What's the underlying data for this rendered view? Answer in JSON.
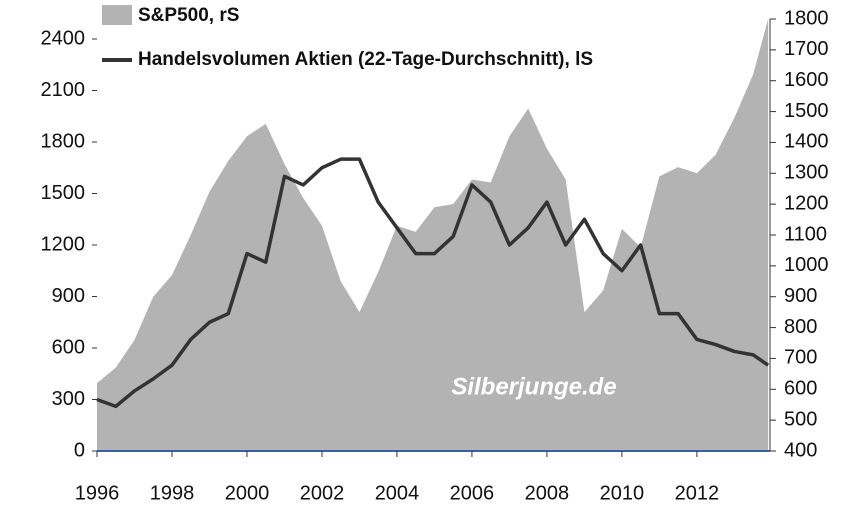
{
  "chart_data": {
    "type": "line",
    "legend": [
      "S&P500, rS",
      "Handelsvolumen Aktien (22-Tage-Durchschnitt), lS"
    ],
    "annotation": "Silberjunge.de",
    "x": [
      1996,
      1996.5,
      1997,
      1997.5,
      1998,
      1998.5,
      1999,
      1999.5,
      2000,
      2000.5,
      2001,
      2001.5,
      2002,
      2002.5,
      2003,
      2003.5,
      2004,
      2004.5,
      2005,
      2005.5,
      2006,
      2006.5,
      2007,
      2007.5,
      2008,
      2008.5,
      2009,
      2009.5,
      2010,
      2010.5,
      2011,
      2011.5,
      2012,
      2012.5,
      2013,
      2013.5,
      2013.9
    ],
    "series": [
      {
        "name": "S&P500, rS",
        "color": "#b3b3b3",
        "axis": "y2",
        "kind": "area",
        "values": [
          620,
          670,
          760,
          900,
          970,
          1100,
          1240,
          1340,
          1420,
          1460,
          1330,
          1220,
          1130,
          950,
          850,
          980,
          1130,
          1110,
          1190,
          1200,
          1280,
          1270,
          1420,
          1510,
          1380,
          1280,
          850,
          920,
          1120,
          1060,
          1290,
          1320,
          1300,
          1360,
          1480,
          1620,
          1800
        ]
      },
      {
        "name": "Handelsvolumen Aktien (22-Tage-Durchschnitt), lS",
        "color": "#333333",
        "kind": "line",
        "values": [
          300,
          260,
          350,
          420,
          500,
          650,
          750,
          800,
          1150,
          1100,
          1600,
          1550,
          1650,
          1700,
          1700,
          1450,
          1300,
          1150,
          1150,
          1250,
          1550,
          1450,
          1200,
          1300,
          1450,
          1200,
          1350,
          1150,
          1050,
          1200,
          800,
          800,
          650,
          620,
          580,
          560,
          500
        ]
      }
    ],
    "xlim": [
      1996,
      2013.95
    ],
    "xticks": [
      1996,
      1998,
      2000,
      2002,
      2004,
      2006,
      2008,
      2010,
      2012
    ],
    "ylim": [
      0,
      2400
    ],
    "yticks": [
      0,
      300,
      600,
      900,
      1200,
      1500,
      1800,
      2100,
      2400
    ],
    "y2lim": [
      400,
      1800
    ],
    "y2ticks": [
      400,
      500,
      600,
      700,
      800,
      900,
      1000,
      1100,
      1200,
      1300,
      1400,
      1500,
      1600,
      1700,
      1800
    ]
  }
}
